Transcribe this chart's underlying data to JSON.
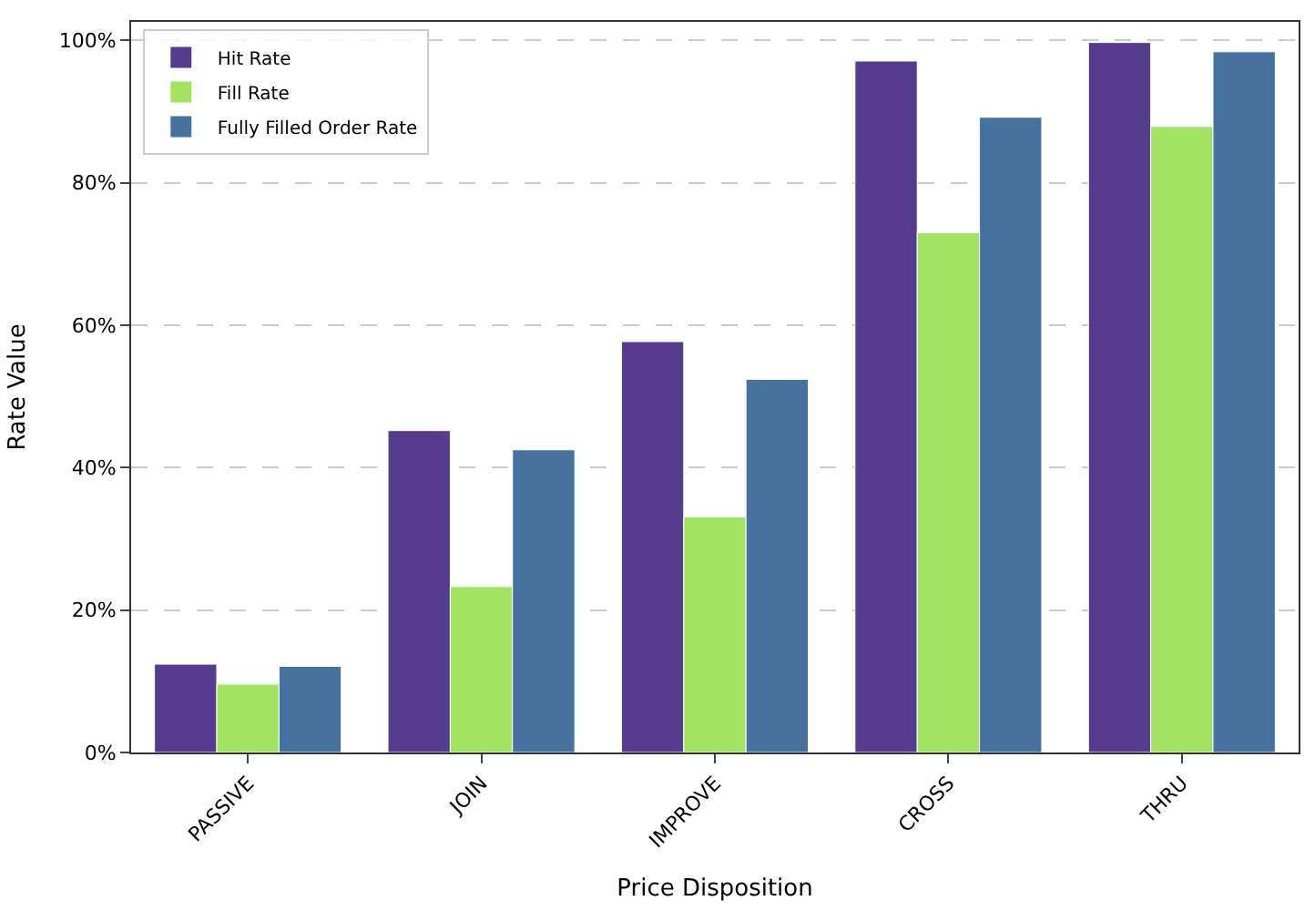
{
  "chart_data": {
    "type": "bar",
    "xlabel": "Price Disposition",
    "ylabel": "Rate Value",
    "categories": [
      "PASSIVE",
      "JOIN",
      "IMPROVE",
      "CROSS",
      "THRU"
    ],
    "series": [
      {
        "name": "Hit Rate",
        "color": "#553c8e",
        "values": [
          12.4,
          45.2,
          57.7,
          97.1,
          99.7
        ]
      },
      {
        "name": "Fill Rate",
        "color": "#a2e363",
        "values": [
          9.6,
          23.3,
          33.1,
          73.0,
          87.9
        ]
      },
      {
        "name": "Fully Filled Order Rate",
        "color": "#46729f",
        "values": [
          12.1,
          42.5,
          52.4,
          89.2,
          98.4
        ]
      }
    ],
    "ylim": [
      0,
      102.6
    ],
    "yticks": [
      {
        "value": 0,
        "label": "0%"
      },
      {
        "value": 20,
        "label": "20%"
      },
      {
        "value": 40,
        "label": "40%"
      },
      {
        "value": 60,
        "label": "60%"
      },
      {
        "value": 80,
        "label": "80%"
      },
      {
        "value": 100,
        "label": "100%"
      }
    ],
    "grid": "y",
    "legend": "top left"
  }
}
